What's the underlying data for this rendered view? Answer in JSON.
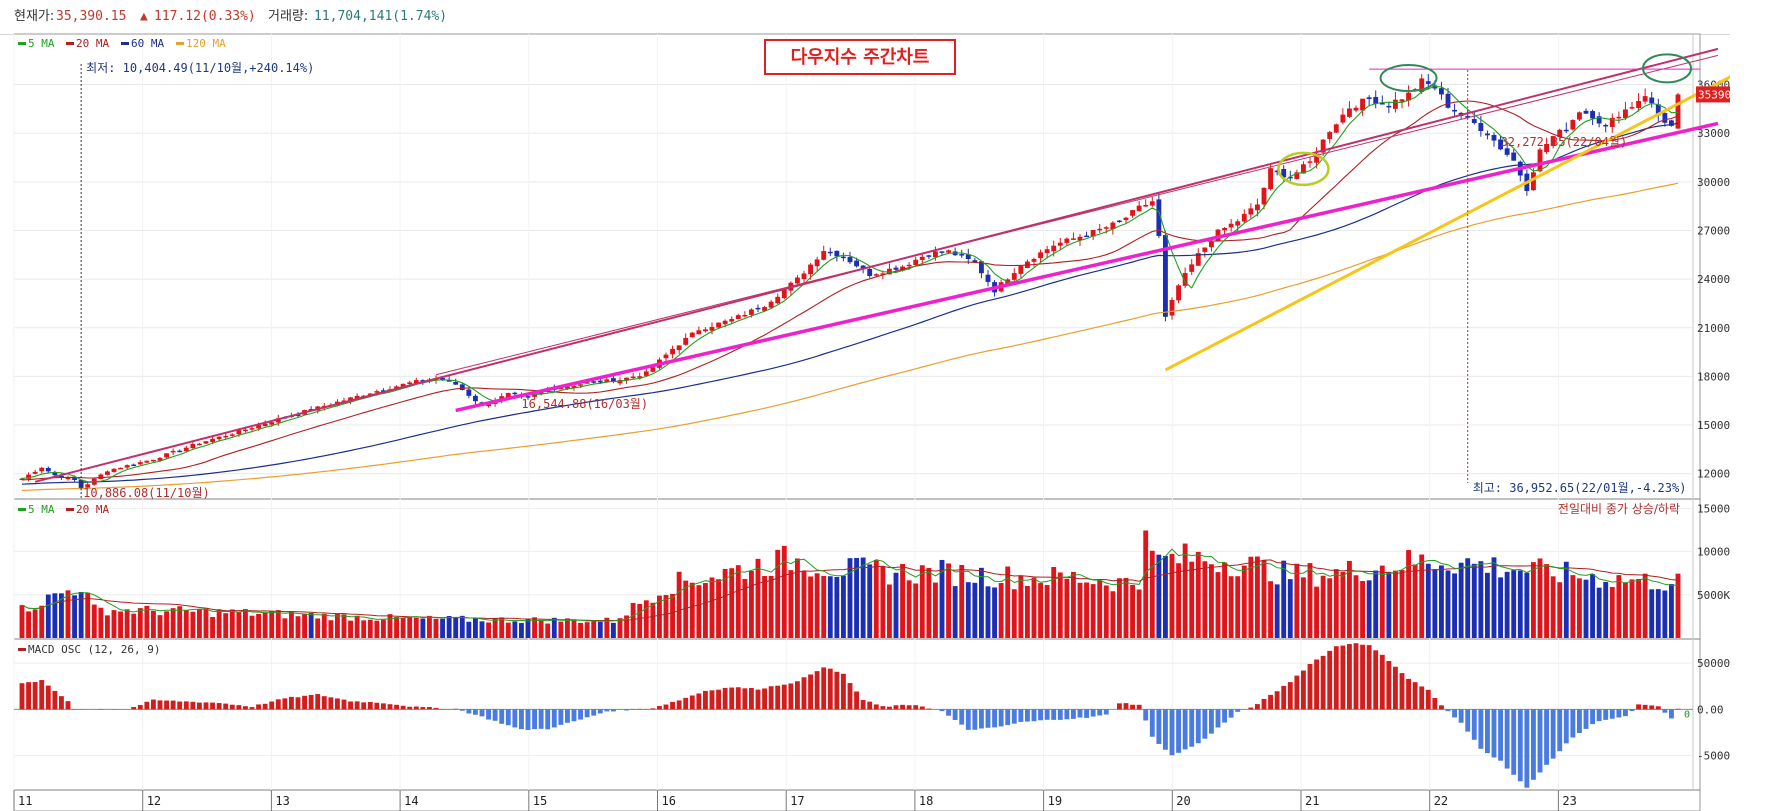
{
  "header": {
    "price_label": "현재가:",
    "price_value": "35,390.15",
    "change_arrow": "▲",
    "change_value": "117.12(0.33%)",
    "volume_label": "거래량:",
    "volume_value": "11,704,141(1.74%)"
  },
  "colors": {
    "up": "#e0141b",
    "down": "#1c2fb4",
    "ma5": "#20a020",
    "ma20": "#b02020",
    "ma60": "#1c2f8c",
    "ma120": "#e8a030",
    "trend_magenta": "#ee22cc",
    "trend_yellow": "#f5c518",
    "trend_channel": "#c0306a",
    "macd_pos": "#d21d1d",
    "macd_neg": "#4a7be0"
  },
  "chart_data": [
    {
      "type": "candlestick",
      "title": "다우지수 주간차트",
      "legend": [
        "5 MA",
        "20 MA",
        "60 MA",
        "120 MA"
      ],
      "x_ticks": [
        "11",
        "12",
        "13",
        "14",
        "15",
        "16",
        "17",
        "18",
        "19",
        "20",
        "21",
        "22",
        "23"
      ],
      "y_ticks": [
        "12000",
        "15000",
        "18000",
        "21000",
        "24000",
        "27000",
        "30000",
        "33000",
        "36000"
      ],
      "ylim": [
        10500,
        38500
      ],
      "annotations": {
        "low_top": "최저: 10,404.49(11/10월,+240.14%)",
        "low_bottom": "10,886.08(11/10월)",
        "low_2016": "16,544.88(16/03월)",
        "low_2022": "32,272.85(22/04월)",
        "high": "최고: 36,952.65(22/01월,-4.23%)",
        "last_price_tag": "35390"
      },
      "close_anchors": [
        [
          0,
          11700
        ],
        [
          3,
          12400
        ],
        [
          5,
          11900
        ],
        [
          8,
          11600
        ],
        [
          9,
          11100
        ],
        [
          13,
          12200
        ],
        [
          20,
          12900
        ],
        [
          27,
          13900
        ],
        [
          33,
          14600
        ],
        [
          40,
          15500
        ],
        [
          47,
          16300
        ],
        [
          53,
          17000
        ],
        [
          59,
          17600
        ],
        [
          63,
          17900
        ],
        [
          66,
          17500
        ],
        [
          70,
          16200
        ],
        [
          74,
          16900
        ],
        [
          77,
          16700
        ],
        [
          80,
          17200
        ],
        [
          86,
          17600
        ],
        [
          91,
          17800
        ],
        [
          95,
          18200
        ],
        [
          99,
          19700
        ],
        [
          103,
          20900
        ],
        [
          108,
          21500
        ],
        [
          113,
          22400
        ],
        [
          118,
          24000
        ],
        [
          122,
          25800
        ],
        [
          125,
          25400
        ],
        [
          129,
          24300
        ],
        [
          134,
          24800
        ],
        [
          138,
          25600
        ],
        [
          141,
          25700
        ],
        [
          145,
          25000
        ],
        [
          148,
          23300
        ],
        [
          152,
          24900
        ],
        [
          157,
          26100
        ],
        [
          163,
          26900
        ],
        [
          167,
          27500
        ],
        [
          170,
          28400
        ],
        [
          172,
          28800
        ],
        [
          173,
          26600
        ],
        [
          174,
          21600
        ],
        [
          176,
          23600
        ],
        [
          179,
          25500
        ],
        [
          182,
          26900
        ],
        [
          185,
          27600
        ],
        [
          188,
          28600
        ],
        [
          190,
          30700
        ],
        [
          193,
          30300
        ],
        [
          196,
          31200
        ],
        [
          199,
          33200
        ],
        [
          202,
          34600
        ],
        [
          205,
          35100
        ],
        [
          208,
          34800
        ],
        [
          211,
          35400
        ],
        [
          213,
          36200
        ],
        [
          215,
          35800
        ],
        [
          217,
          34700
        ],
        [
          219,
          34100
        ],
        [
          221,
          33600
        ],
        [
          223,
          33000
        ],
        [
          225,
          32100
        ],
        [
          227,
          31300
        ],
        [
          229,
          29600
        ],
        [
          231,
          31900
        ],
        [
          233,
          32800
        ],
        [
          235,
          33300
        ],
        [
          237,
          34400
        ],
        [
          239,
          34100
        ],
        [
          241,
          33400
        ],
        [
          243,
          34200
        ],
        [
          245,
          34700
        ],
        [
          247,
          35400
        ],
        [
          249,
          34100
        ],
        [
          251,
          33400
        ],
        [
          252,
          35390
        ]
      ],
      "volume_panel": {
        "legend": [
          "5 MA",
          "20 MA"
        ],
        "note": "전일대비 종가 상승/하락",
        "y_ticks": [
          "5000K",
          "10000K",
          "15000K"
        ],
        "ylim": [
          0,
          15500
        ]
      },
      "volume_anchors": [
        [
          0,
          3300
        ],
        [
          9,
          6100
        ],
        [
          11,
          3300
        ],
        [
          30,
          3000
        ],
        [
          60,
          2200
        ],
        [
          90,
          2000
        ],
        [
          98,
          6100
        ],
        [
          106,
          7400
        ],
        [
          113,
          8600
        ],
        [
          117,
          9100
        ],
        [
          125,
          7900
        ],
        [
          133,
          7600
        ],
        [
          140,
          7600
        ],
        [
          152,
          7000
        ],
        [
          160,
          7000
        ],
        [
          168,
          6400
        ],
        [
          170,
          6200
        ],
        [
          171,
          15400
        ],
        [
          172,
          8900
        ],
        [
          178,
          9300
        ],
        [
          185,
          8800
        ],
        [
          193,
          7300
        ],
        [
          200,
          7500
        ],
        [
          210,
          8700
        ],
        [
          216,
          9000
        ],
        [
          223,
          8400
        ],
        [
          231,
          7700
        ],
        [
          241,
          6900
        ],
        [
          252,
          6400
        ]
      ],
      "macd_panel": {
        "legend": "MACD OSC (12, 26, 9)",
        "y_ticks": [
          "-50000",
          "0.00",
          "50000"
        ],
        "zero_label": "0",
        "ylim": [
          -85000,
          75000
        ]
      },
      "macd_anchors": [
        [
          0,
          28000
        ],
        [
          3,
          31000
        ],
        [
          7,
          9000
        ],
        [
          8,
          0
        ],
        [
          16,
          0
        ],
        [
          20,
          10000
        ],
        [
          30,
          7000
        ],
        [
          35,
          3000
        ],
        [
          40,
          12000
        ],
        [
          45,
          16000
        ],
        [
          50,
          9000
        ],
        [
          55,
          7000
        ],
        [
          60,
          2500
        ],
        [
          66,
          500
        ],
        [
          70,
          -8000
        ],
        [
          76,
          -22000
        ],
        [
          80,
          -21000
        ],
        [
          86,
          -9000
        ],
        [
          89,
          -2000
        ],
        [
          93,
          0
        ],
        [
          96,
          1500
        ],
        [
          100,
          10000
        ],
        [
          104,
          20000
        ],
        [
          108,
          24000
        ],
        [
          112,
          22000
        ],
        [
          118,
          30000
        ],
        [
          122,
          46000
        ],
        [
          125,
          38000
        ],
        [
          128,
          10000
        ],
        [
          131,
          3000
        ],
        [
          136,
          5000
        ],
        [
          140,
          -2000
        ],
        [
          144,
          -22000
        ],
        [
          148,
          -20000
        ],
        [
          152,
          -14000
        ],
        [
          157,
          -11000
        ],
        [
          162,
          -9000
        ],
        [
          165,
          -6000
        ],
        [
          167,
          7000
        ],
        [
          170,
          5000
        ],
        [
          172,
          -30000
        ],
        [
          175,
          -50000
        ],
        [
          179,
          -37000
        ],
        [
          182,
          -20000
        ],
        [
          185,
          -3000
        ],
        [
          187,
          2000
        ],
        [
          190,
          15000
        ],
        [
          193,
          30000
        ],
        [
          196,
          49000
        ],
        [
          200,
          68000
        ],
        [
          203,
          72000
        ],
        [
          205,
          69000
        ],
        [
          208,
          53000
        ],
        [
          211,
          33000
        ],
        [
          214,
          21000
        ],
        [
          216,
          4000
        ],
        [
          219,
          -15000
        ],
        [
          222,
          -42000
        ],
        [
          225,
          -56000
        ],
        [
          229,
          -85000
        ],
        [
          232,
          -60000
        ],
        [
          236,
          -30000
        ],
        [
          240,
          -12000
        ],
        [
          244,
          -8000
        ],
        [
          246,
          5000
        ],
        [
          249,
          3000
        ],
        [
          251,
          -10000
        ],
        [
          252,
          0
        ]
      ]
    }
  ]
}
